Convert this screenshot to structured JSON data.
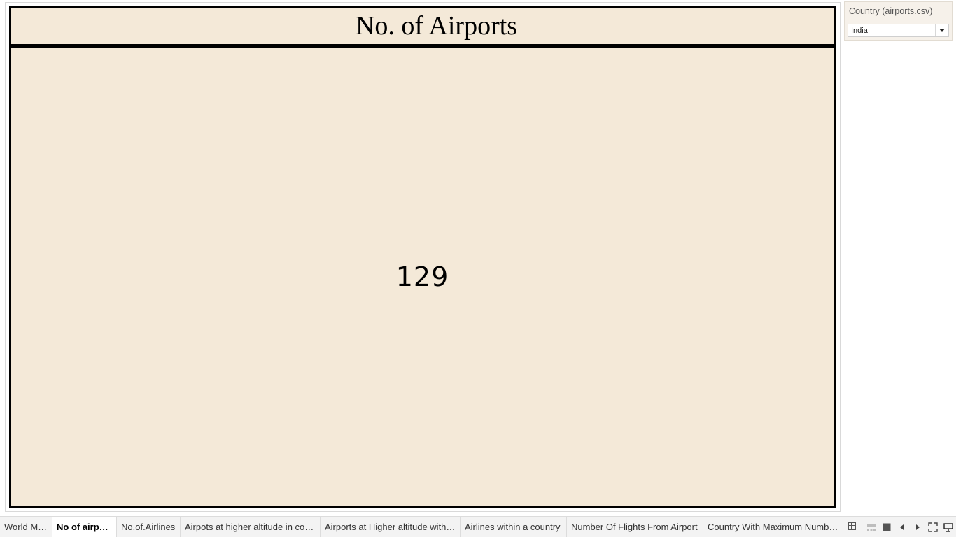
{
  "dashboard": {
    "title": "No. of Airports",
    "kpi_value": "129"
  },
  "filter": {
    "title": "Country (airports.csv)",
    "selected": "India"
  },
  "tabs": [
    {
      "label": "World Map",
      "active": false
    },
    {
      "label": "No of airports",
      "active": true
    },
    {
      "label": "No.of.Airlines",
      "active": false
    },
    {
      "label": "Airpots at higher altitude in coun...",
      "active": false
    },
    {
      "label": "Airports at Higher altitude within...",
      "active": false
    },
    {
      "label": "Airlines within a country",
      "active": false
    },
    {
      "label": "Number Of Flights From Airport",
      "active": false
    },
    {
      "label": "Country With Maximum Number...",
      "active": false
    }
  ],
  "toolbar_icons": [
    "new-sheet-icon",
    "filmstrip-icon",
    "tile-icon",
    "previous-icon",
    "next-icon",
    "fit-screen-icon",
    "presentation-icon"
  ],
  "colors": {
    "card_bg": "#f4e9d8",
    "border": "#000000",
    "tabbar_bg": "#f3f3f3"
  }
}
